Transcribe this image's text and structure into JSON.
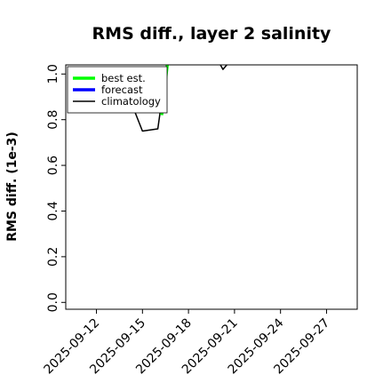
{
  "chart_data": {
    "type": "line",
    "title": "RMS diff., layer 2 salinity",
    "xlabel": "",
    "ylabel": "RMS diff. (1e-3)",
    "xlim": [
      "2025-09-10",
      "2025-09-29"
    ],
    "ylim": [
      -0.03,
      1.04
    ],
    "x_tick_labels": [
      "2025-09-12",
      "2025-09-15",
      "2025-09-18",
      "2025-09-21",
      "2025-09-24",
      "2025-09-27"
    ],
    "highlighted_tick": "2025-09-18",
    "highlight_color": "#228B22",
    "y_tick_labels": [
      "0.0",
      "0.2",
      "0.4",
      "0.6",
      "0.8",
      "1.0"
    ],
    "legend_position": "top-left",
    "series": [
      {
        "name": "best est.",
        "color": "#00ff00",
        "x": [
          "2025-09-16T06:00",
          "2025-09-16T18:00"
        ],
        "y": [
          0.82,
          1.12
        ]
      },
      {
        "name": "forecast",
        "color": "#0000ff",
        "x": [],
        "y": []
      },
      {
        "name": "climatology",
        "color": "#000000",
        "x": [
          "2025-09-14T00:00",
          "2025-09-15T00:00",
          "2025-09-16T00:00",
          "2025-09-16T18:00",
          "2025-09-17T00:00",
          "2025-09-20T00:00",
          "2025-09-20T06:00",
          "2025-09-20T18:00"
        ],
        "y": [
          0.92,
          0.75,
          0.76,
          1.12,
          1.05,
          1.05,
          1.02,
          1.06
        ]
      }
    ]
  }
}
